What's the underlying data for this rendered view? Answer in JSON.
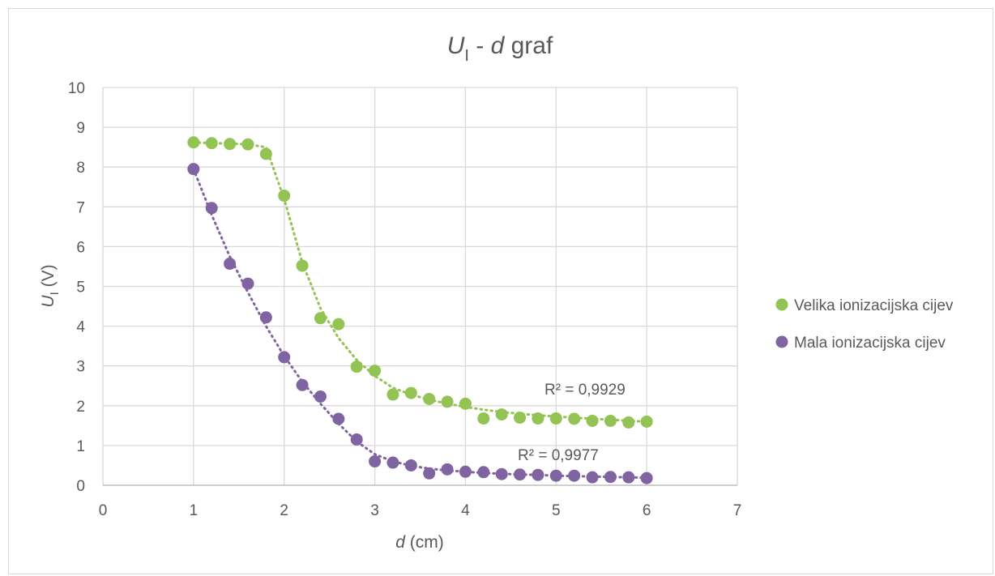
{
  "chart_data": {
    "type": "scatter",
    "title": {
      "main": "U",
      "sub": "I",
      "rest": " - ",
      "var": "d",
      "tail": " graf"
    },
    "xlabel": {
      "var": "d",
      "unit": " (cm)"
    },
    "ylabel": {
      "var": "U",
      "sub": "I",
      "unit": " (V)"
    },
    "xlim": [
      0,
      7
    ],
    "ylim": [
      0,
      10
    ],
    "xticks": [
      "0",
      "1",
      "2",
      "3",
      "4",
      "5",
      "6",
      "7"
    ],
    "yticks": [
      "0",
      "1",
      "2",
      "3",
      "4",
      "5",
      "6",
      "7",
      "8",
      "9",
      "10"
    ],
    "grid": true,
    "legend_position": "right",
    "series": [
      {
        "name": "Velika ionizacijska cijev",
        "color": "#92c353",
        "trendline": "dotted",
        "r2_label": "R² = 0,9929",
        "x": [
          1.0,
          1.2,
          1.4,
          1.6,
          1.8,
          2.0,
          2.2,
          2.4,
          2.6,
          2.8,
          3.0,
          3.2,
          3.4,
          3.6,
          3.8,
          4.0,
          4.2,
          4.4,
          4.6,
          4.8,
          5.0,
          5.2,
          5.4,
          5.6,
          5.8,
          6.0
        ],
        "y": [
          8.62,
          8.6,
          8.58,
          8.57,
          8.33,
          7.28,
          5.52,
          4.2,
          4.05,
          2.98,
          2.88,
          2.28,
          2.32,
          2.17,
          2.1,
          2.05,
          1.68,
          1.78,
          1.7,
          1.68,
          1.68,
          1.67,
          1.62,
          1.62,
          1.58,
          1.6
        ],
        "trend_y": [
          8.62,
          8.6,
          8.59,
          8.57,
          8.5,
          7.2,
          5.6,
          4.45,
          3.7,
          3.15,
          2.75,
          2.45,
          2.28,
          2.15,
          2.05,
          1.97,
          1.9,
          1.84,
          1.8,
          1.76,
          1.73,
          1.7,
          1.67,
          1.65,
          1.62,
          1.6
        ]
      },
      {
        "name": "Mala ionizacijska cijev",
        "color": "#8064a2",
        "trendline": "dotted",
        "r2_label": "R² = 0,9977",
        "x": [
          1.0,
          1.2,
          1.4,
          1.6,
          1.8,
          2.0,
          2.2,
          2.4,
          2.6,
          2.8,
          3.0,
          3.2,
          3.4,
          3.6,
          3.8,
          4.0,
          4.2,
          4.4,
          4.6,
          4.8,
          5.0,
          5.2,
          5.4,
          5.6,
          5.8,
          6.0
        ],
        "y": [
          7.95,
          6.97,
          5.57,
          5.07,
          4.22,
          3.22,
          2.52,
          2.23,
          1.67,
          1.15,
          0.6,
          0.57,
          0.5,
          0.3,
          0.4,
          0.34,
          0.33,
          0.28,
          0.27,
          0.26,
          0.24,
          0.24,
          0.2,
          0.21,
          0.2,
          0.18
        ],
        "trend_y": [
          7.95,
          6.8,
          5.75,
          4.85,
          4.0,
          3.25,
          2.6,
          2.05,
          1.55,
          1.1,
          0.78,
          0.6,
          0.49,
          0.42,
          0.37,
          0.34,
          0.31,
          0.29,
          0.27,
          0.26,
          0.24,
          0.23,
          0.22,
          0.21,
          0.2,
          0.19
        ]
      }
    ]
  }
}
